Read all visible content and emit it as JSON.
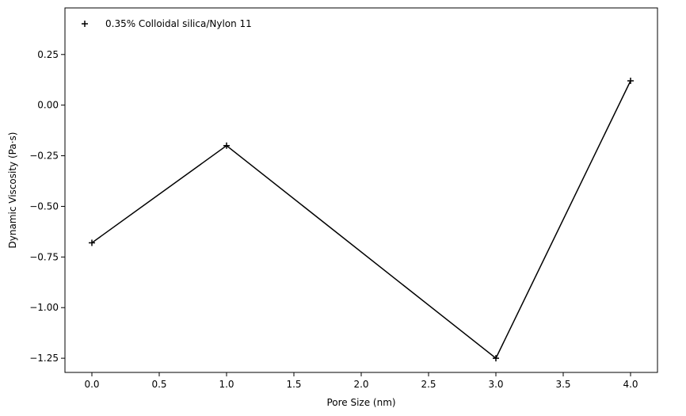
{
  "chart_data": {
    "type": "line",
    "xlabel": "Pore Size (nm)",
    "ylabel": "Dynamic Viscosity (Pa·s)",
    "xlim": [
      -0.2,
      4.2
    ],
    "ylim": [
      -1.32,
      0.48
    ],
    "xticks": [
      0.0,
      0.5,
      1.0,
      1.5,
      2.0,
      2.5,
      3.0,
      3.5,
      4.0
    ],
    "xtick_labels": [
      "0.0",
      "0.5",
      "1.0",
      "1.5",
      "2.0",
      "2.5",
      "3.0",
      "3.5",
      "4.0"
    ],
    "yticks": [
      0.25,
      0.0,
      -0.25,
      -0.5,
      -0.75,
      -1.0,
      -1.25
    ],
    "ytick_labels": [
      "0.25",
      "0.00",
      "−0.25",
      "−0.50",
      "−0.75",
      "−1.00",
      "−1.25"
    ],
    "grid": false,
    "legend_position": "top-left",
    "series": [
      {
        "name": "0.35% Colloidal silica/Nylon 11",
        "marker": "plus",
        "color": "#000000",
        "x": [
          0,
          1,
          3,
          4
        ],
        "y": [
          -0.68,
          -0.2,
          -1.25,
          0.12
        ]
      }
    ]
  }
}
